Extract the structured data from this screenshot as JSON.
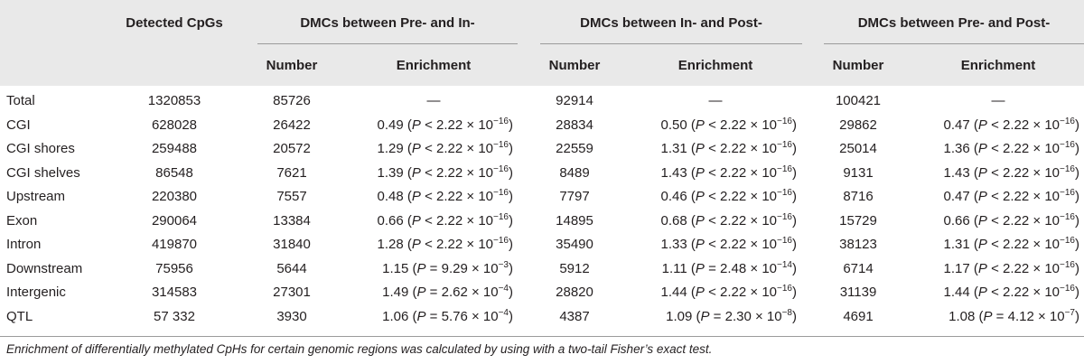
{
  "header": {
    "detected": "Detected CpGs",
    "groups": [
      "DMCs between Pre- and In-",
      "DMCs between In- and Post-",
      "DMCs between Pre- and Post-"
    ],
    "sub": {
      "number": "Number",
      "enrichment": "Enrichment"
    }
  },
  "rows": [
    {
      "region": "Total",
      "detected": "1320853",
      "g": [
        {
          "n": "85726",
          "e": "—"
        },
        {
          "n": "92914",
          "e": "—"
        },
        {
          "n": "100421",
          "e": "—"
        }
      ]
    },
    {
      "region": "CGI",
      "detected": "628028",
      "g": [
        {
          "n": "26422",
          "e": "0.49",
          "op": "<",
          "m": "2.22",
          "x": "−16"
        },
        {
          "n": "28834",
          "e": "0.50",
          "op": "<",
          "m": "2.22",
          "x": "−16"
        },
        {
          "n": "29862",
          "e": "0.47",
          "op": "<",
          "m": "2.22",
          "x": "−16"
        }
      ]
    },
    {
      "region": "CGI shores",
      "detected": "259488",
      "g": [
        {
          "n": "20572",
          "e": "1.29",
          "op": "<",
          "m": "2.22",
          "x": "−16"
        },
        {
          "n": "22559",
          "e": "1.31",
          "op": "<",
          "m": "2.22",
          "x": "−16"
        },
        {
          "n": "25014",
          "e": "1.36",
          "op": "<",
          "m": "2.22",
          "x": "−16"
        }
      ]
    },
    {
      "region": "CGI shelves",
      "detected": "86548",
      "g": [
        {
          "n": "7621",
          "e": "1.39",
          "op": "<",
          "m": "2.22",
          "x": "−16"
        },
        {
          "n": "8489",
          "e": "1.43",
          "op": "<",
          "m": "2.22",
          "x": "−16"
        },
        {
          "n": "9131",
          "e": "1.43",
          "op": "<",
          "m": "2.22",
          "x": "−16"
        }
      ]
    },
    {
      "region": "Upstream",
      "detected": "220380",
      "g": [
        {
          "n": "7557",
          "e": "0.48",
          "op": "<",
          "m": "2.22",
          "x": "−16"
        },
        {
          "n": "7797",
          "e": "0.46",
          "op": "<",
          "m": "2.22",
          "x": "−16"
        },
        {
          "n": "8716",
          "e": "0.47",
          "op": "<",
          "m": "2.22",
          "x": "−16"
        }
      ]
    },
    {
      "region": "Exon",
      "detected": "290064",
      "g": [
        {
          "n": "13384",
          "e": "0.66",
          "op": "<",
          "m": "2.22",
          "x": "−16"
        },
        {
          "n": "14895",
          "e": "0.68",
          "op": "<",
          "m": "2.22",
          "x": "−16"
        },
        {
          "n": "15729",
          "e": "0.66",
          "op": "<",
          "m": "2.22",
          "x": "−16"
        }
      ]
    },
    {
      "region": "Intron",
      "detected": "419870",
      "g": [
        {
          "n": "31840",
          "e": "1.28",
          "op": "<",
          "m": "2.22",
          "x": "−16"
        },
        {
          "n": "35490",
          "e": "1.33",
          "op": "<",
          "m": "2.22",
          "x": "−16"
        },
        {
          "n": "38123",
          "e": "1.31",
          "op": "<",
          "m": "2.22",
          "x": "−16"
        }
      ]
    },
    {
      "region": "Downstream",
      "detected": "75956",
      "g": [
        {
          "n": "5644",
          "e": "1.15",
          "op": "=",
          "m": "9.29",
          "x": "−3"
        },
        {
          "n": "5912",
          "e": "1.11",
          "op": "=",
          "m": "2.48",
          "x": "−14"
        },
        {
          "n": "6714",
          "e": "1.17",
          "op": "<",
          "m": "2.22",
          "x": "−16"
        }
      ]
    },
    {
      "region": "Intergenic",
      "detected": "314583",
      "g": [
        {
          "n": "27301",
          "e": "1.49",
          "op": "=",
          "m": "2.62",
          "x": "−4"
        },
        {
          "n": "28820",
          "e": "1.44",
          "op": "<",
          "m": "2.22",
          "x": "−16"
        },
        {
          "n": "31139",
          "e": "1.44",
          "op": "<",
          "m": "2.22",
          "x": "−16"
        }
      ]
    },
    {
      "region": "QTL",
      "detected": "57 332",
      "g": [
        {
          "n": "3930",
          "e": "1.06",
          "op": "=",
          "m": "5.76",
          "x": "−4"
        },
        {
          "n": "4387",
          "e": "1.09",
          "op": "=",
          "m": "2.30",
          "x": "−8"
        },
        {
          "n": "4691",
          "e": "1.08",
          "op": "=",
          "m": "4.12",
          "x": "−7"
        }
      ]
    }
  ],
  "footnote": "Enrichment of differentially methylated CpHs for certain genomic regions was calculated by using with a two-tail Fisher’s exact test."
}
